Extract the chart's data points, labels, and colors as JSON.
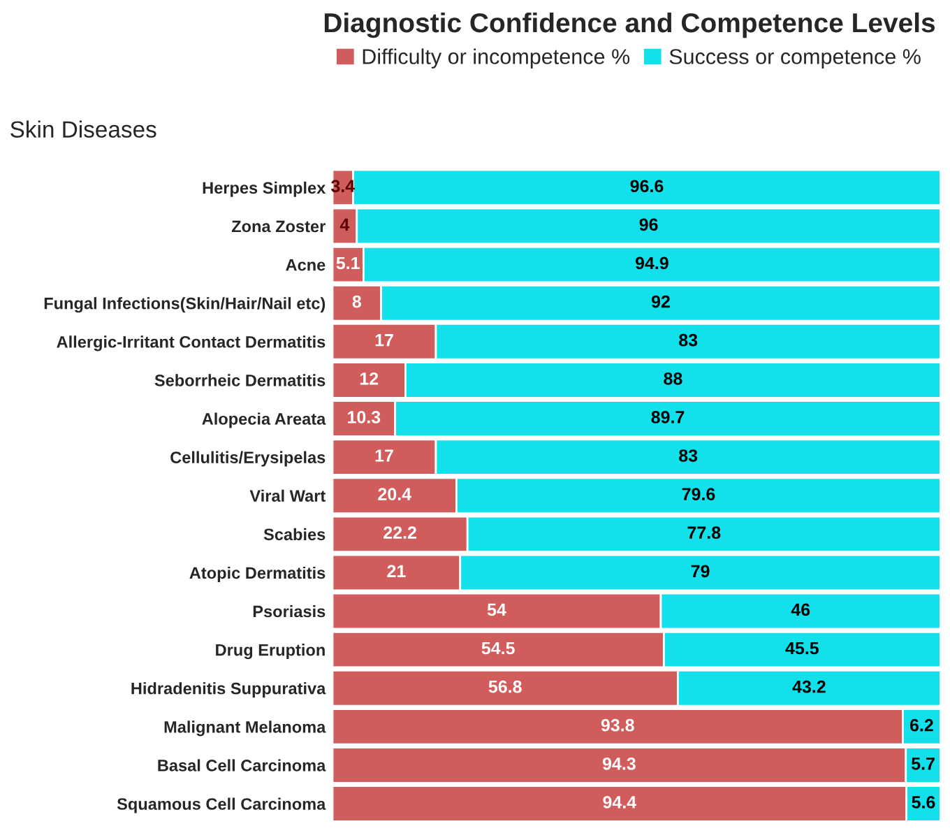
{
  "chart_data": {
    "type": "bar",
    "orientation": "horizontal",
    "stacked": true,
    "data_labels": true,
    "legend": "top right",
    "grid": false,
    "title": "Diagnostic Confidence and Competence Levels",
    "ylabel": "Skin Diseases",
    "categories": [
      "Herpes Simplex",
      "Zona Zoster",
      "Acne",
      "Fungal Infections(Skin/Hair/Nail etc)",
      "Allergic-Irritant Contact Dermatitis",
      "Seborrheic Dermatitis",
      "Alopecia Areata",
      "Cellulitis/Erysipelas",
      "Viral Wart",
      "Scabies",
      "Atopic Dermatitis",
      "Psoriasis",
      "Drug Eruption",
      "Hidradenitis Suppurativa",
      "Malignant Melanoma",
      "Basal Cell Carcinoma",
      "Squamous Cell Carcinoma"
    ],
    "series": [
      {
        "name": "Difficulty or incompetence %",
        "color": "#d15c5c",
        "values": [
          3.4,
          4,
          5.1,
          8,
          17,
          12,
          10.3,
          17,
          20.4,
          22.2,
          21,
          54,
          54.5,
          56.8,
          93.8,
          94.3,
          94.4
        ]
      },
      {
        "name": "Success or competence %",
        "color": "#12e0ea",
        "values": [
          96.6,
          96,
          94.9,
          92,
          83,
          88,
          89.7,
          83,
          79.6,
          77.8,
          79,
          46,
          45.5,
          43.2,
          6.2,
          5.7,
          5.6
        ]
      }
    ]
  }
}
